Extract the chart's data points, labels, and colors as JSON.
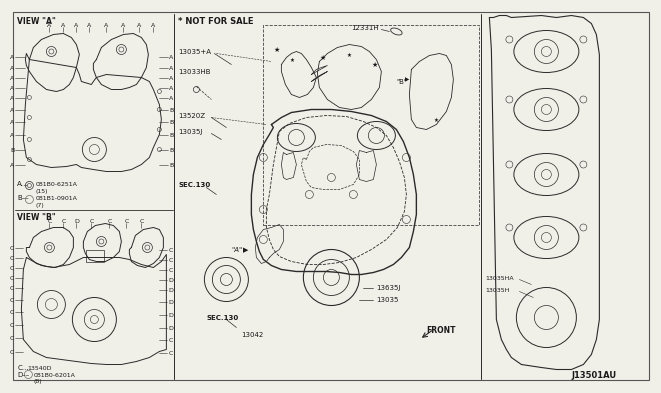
{
  "bg_color": "#f0efe8",
  "line_color": "#2a2a2a",
  "text_color": "#1a1a1a",
  "diagram_id": "J13501AU",
  "not_for_sale": "* NOT FOR SALE",
  "view_a": "VIEW \"A\"",
  "view_b": "VIEW \"B\"",
  "labels_left_top": [
    "A",
    "A",
    "A",
    "A",
    "A",
    "A",
    "A",
    "A",
    "A",
    "A"
  ],
  "labels_right_top": [
    "A",
    "A",
    "A",
    "A",
    "A",
    "B",
    "B",
    "B",
    "B",
    "B"
  ],
  "labels_top_a": [
    "A",
    "A",
    "A",
    "A",
    "A",
    "A",
    "A"
  ],
  "labels_left_bot": [
    "C",
    "C",
    "C",
    "C",
    "C",
    "C",
    "C",
    "C",
    "C",
    "C"
  ],
  "labels_right_bot": [
    "C",
    "C",
    "C",
    "C",
    "D",
    "D",
    "D",
    "D",
    "C",
    "C"
  ],
  "labels_top_b": [
    "C",
    "C",
    "D",
    "C",
    "C",
    "C"
  ],
  "ref_a_bolt": "081B0-6251A",
  "ref_a_qty": "(15)",
  "ref_b_bolt": "081B1-0901A",
  "ref_b_qty": "(7)",
  "ref_c_part": "13540D",
  "ref_d_bolt": "081B0-6201A",
  "ref_d_qty": "(8)",
  "part_12331H": "12331H",
  "part_13035A": "13035+A",
  "part_13033HB": "13033HB",
  "part_13520Z": "13520Z",
  "part_13035J": "13035J",
  "part_13035HA": "13035HA",
  "part_13035H": "13035H",
  "part_13635J": "13635J",
  "part_13035": "13035",
  "part_13042": "13042",
  "sec130": "SEC.130",
  "front": "FRONT"
}
